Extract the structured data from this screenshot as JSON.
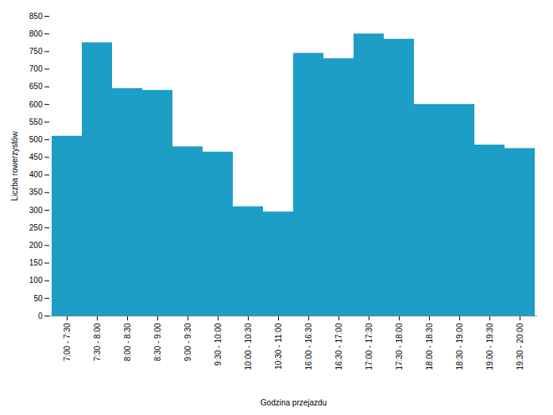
{
  "chart_data": {
    "type": "bar",
    "categories": [
      "7:00 - 7:30",
      "7:30 - 8:00",
      "8:00 - 8:30",
      "8:30 - 9:00",
      "9:00 - 9:30",
      "9:30 - 10:00",
      "10:00 - 10:30",
      "10:30 - 11:00",
      "16:00 - 16:30",
      "16:30 - 17:00",
      "17:00 - 17:30",
      "17:30 - 18:00",
      "18:00 - 18:30",
      "18:30 - 19:00",
      "19:00 - 19:30",
      "19:30 - 20:00"
    ],
    "values": [
      510,
      775,
      645,
      640,
      480,
      465,
      310,
      295,
      745,
      730,
      800,
      785,
      600,
      600,
      485,
      475
    ],
    "color": "#1C9EC7",
    "xlabel": "Godzina przejazdu",
    "ylabel": "Liczba rowerzystów",
    "ylim": [
      0,
      850
    ],
    "yticks": [
      0,
      50,
      100,
      150,
      200,
      250,
      300,
      350,
      400,
      450,
      500,
      550,
      600,
      650,
      700,
      750,
      800,
      850
    ],
    "grid": false
  }
}
